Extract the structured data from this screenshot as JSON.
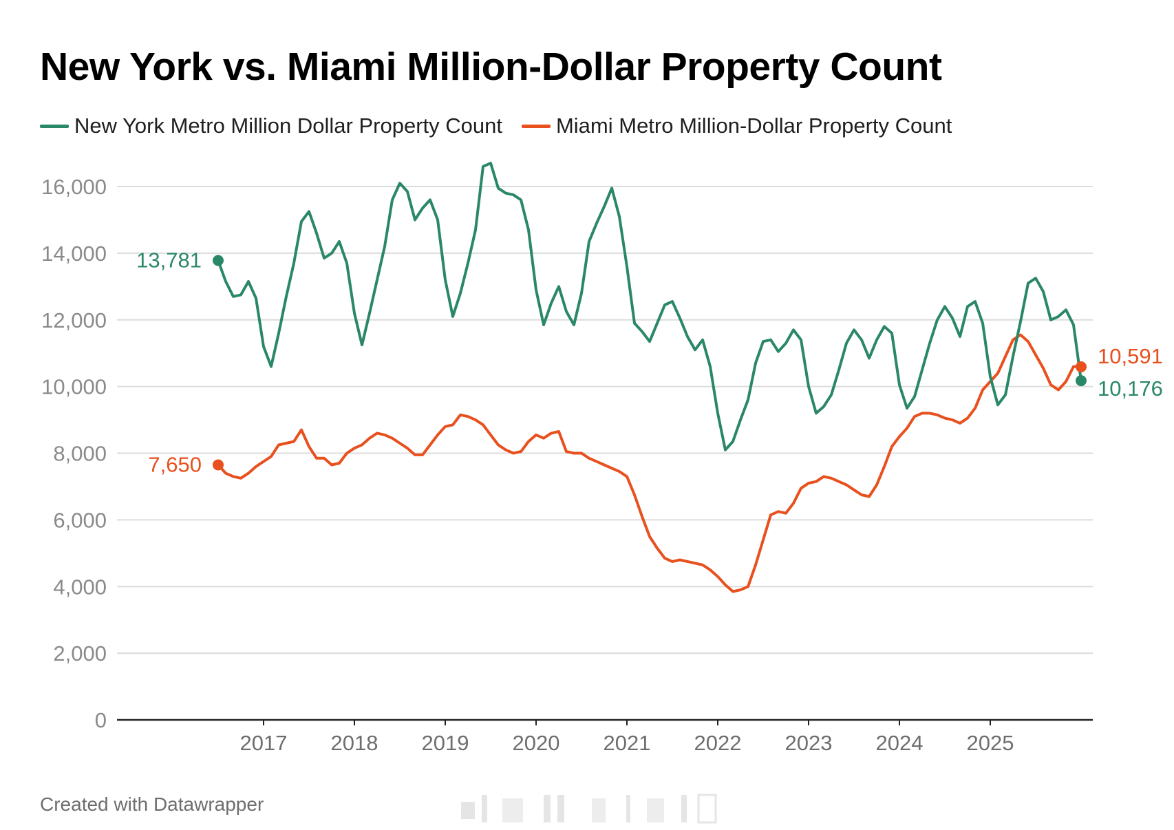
{
  "title": "New York vs. Miami Million-Dollar Property Count",
  "footer": "Created with Datawrapper",
  "chart_data": {
    "type": "line",
    "title": "New York vs. Miami Million-Dollar Property Count",
    "xlabel": "",
    "ylabel": "",
    "ylim": [
      0,
      17000
    ],
    "yticks": [
      0,
      2000,
      4000,
      6000,
      8000,
      10000,
      12000,
      14000,
      16000
    ],
    "ytick_labels": [
      "0",
      "2,000",
      "4,000",
      "6,000",
      "8,000",
      "10,000",
      "12,000",
      "14,000",
      "16,000"
    ],
    "xticks": [
      2017,
      2018,
      2019,
      2020,
      2021,
      2022,
      2023,
      2024,
      2025
    ],
    "xtick_labels": [
      "2017",
      "2018",
      "2019",
      "2020",
      "2021",
      "2022",
      "2023",
      "2024",
      "2025"
    ],
    "x_start": "2016-07",
    "x_end": "2025-12",
    "grid": true,
    "legend_position": "top-left",
    "series": [
      {
        "name": "New York Metro Million Dollar Property Count",
        "color": "#2a8768",
        "start_label": "13,781",
        "end_label": "10,176",
        "values": [
          13781,
          13150,
          12700,
          12750,
          13150,
          12650,
          11200,
          10600,
          11600,
          12700,
          13700,
          14950,
          15250,
          14600,
          13850,
          14000,
          14350,
          13700,
          12200,
          11250,
          12200,
          13200,
          14200,
          15600,
          16100,
          15850,
          15000,
          15350,
          15600,
          15000,
          13200,
          12100,
          12800,
          13700,
          14700,
          16600,
          16700,
          15950,
          15800,
          15750,
          15600,
          14700,
          12900,
          11850,
          12500,
          13000,
          12250,
          11850,
          12800,
          14350,
          14900,
          15400,
          15950,
          15100,
          13600,
          11900,
          11650,
          11350,
          11900,
          12450,
          12550,
          12050,
          11500,
          11100,
          11400,
          10600,
          9200,
          8100,
          8350,
          9000,
          9600,
          10700,
          11350,
          11400,
          11050,
          11300,
          11700,
          11400,
          10000,
          9200,
          9400,
          9750,
          10500,
          11300,
          11700,
          11400,
          10850,
          11400,
          11800,
          11600,
          10050,
          9350,
          9700,
          10500,
          11300,
          12000,
          12400,
          12050,
          11500,
          12400,
          12550,
          11900,
          10300,
          9450,
          9750,
          10900,
          11950,
          13100,
          13250,
          12850,
          12000,
          12100,
          12300,
          11850,
          10176
        ]
      },
      {
        "name": "Miami Metro Million-Dollar Property Count",
        "color": "#e8501e",
        "start_label": "7,650",
        "end_label": "10,591",
        "values": [
          7650,
          7400,
          7300,
          7250,
          7400,
          7600,
          7750,
          7900,
          8250,
          8300,
          8350,
          8700,
          8200,
          7850,
          7850,
          7650,
          7700,
          8000,
          8150,
          8250,
          8450,
          8600,
          8550,
          8450,
          8300,
          8150,
          7950,
          7950,
          8250,
          8550,
          8800,
          8850,
          9150,
          9100,
          9000,
          8850,
          8550,
          8250,
          8100,
          8000,
          8050,
          8350,
          8550,
          8450,
          8600,
          8650,
          8050,
          8000,
          8000,
          7850,
          7750,
          7650,
          7550,
          7450,
          7300,
          6750,
          6100,
          5500,
          5150,
          4850,
          4750,
          4800,
          4750,
          4700,
          4650,
          4500,
          4300,
          4050,
          3850,
          3900,
          4000,
          4650,
          5400,
          6150,
          6250,
          6200,
          6500,
          6950,
          7100,
          7150,
          7300,
          7250,
          7150,
          7050,
          6900,
          6750,
          6700,
          7050,
          7600,
          8200,
          8500,
          8750,
          9100,
          9200,
          9200,
          9150,
          9050,
          9000,
          8900,
          9050,
          9350,
          9900,
          10150,
          10400,
          10900,
          11400,
          11550,
          11350,
          10950,
          10550,
          10050,
          9900,
          10150,
          10600,
          10591
        ]
      }
    ]
  }
}
